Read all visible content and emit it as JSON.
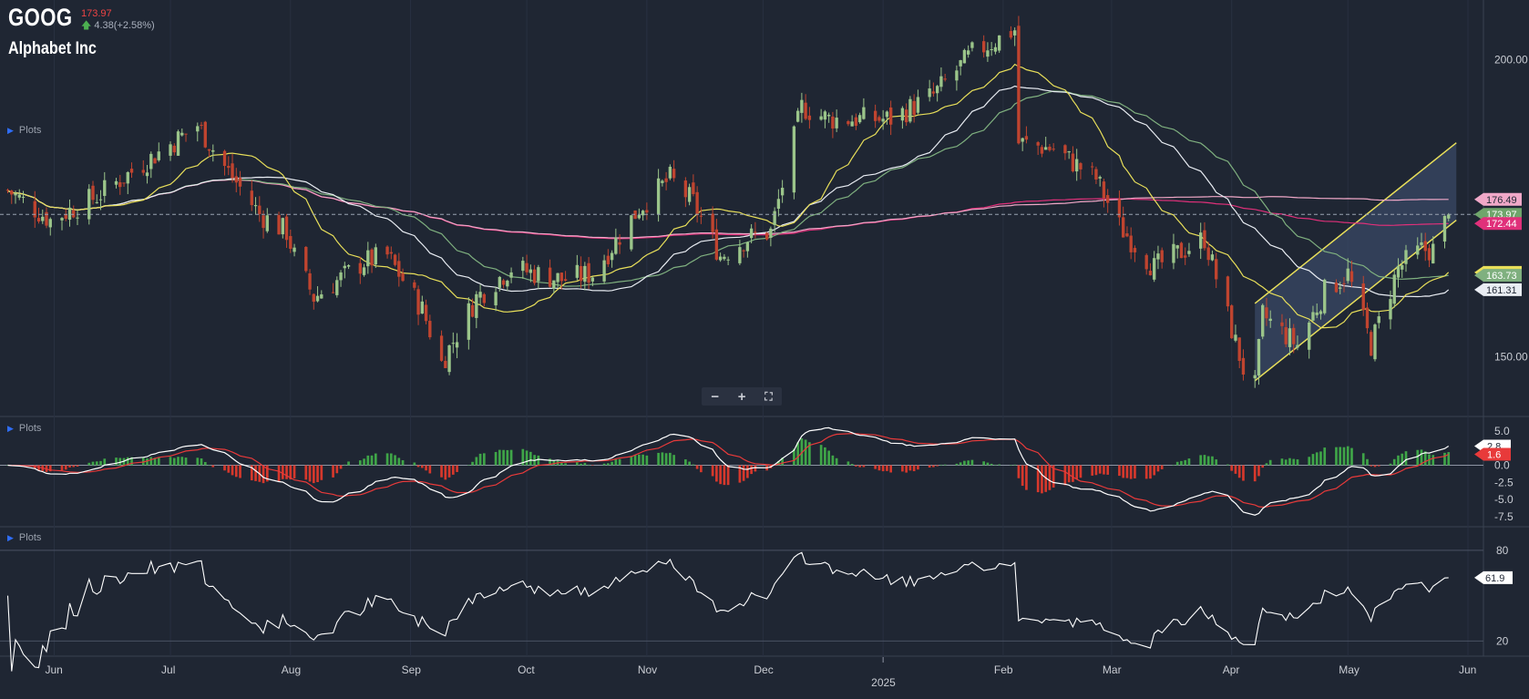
{
  "header": {
    "symbol": "GOOG",
    "price": "173.97",
    "change": "4.38(+2.58%)",
    "company": "Alphabet Inc"
  },
  "panels": {
    "plots_label": "Plots"
  },
  "zoom_controls": {
    "minus": "−",
    "plus": "+",
    "fullscreen": "⛶"
  },
  "colors": {
    "background": "#1f2633",
    "up_candle": "#9bc58a",
    "down_candle": "#c0442f",
    "ma_fast": "#e8df5a",
    "ma_white": "#e9edf3",
    "ma_green": "#7fb07f",
    "ma_pink": "#f0a8c8",
    "ma_magenta": "#e0307a",
    "channel_line": "#e8df5a",
    "channel_fill": "#3a4866",
    "macd_line": "#ffffff",
    "signal_line": "#e83a3a",
    "hist_pos": "#3fa548",
    "hist_neg": "#d6382c",
    "rsi_line": "#ffffff"
  },
  "chart_data": [
    {
      "type": "candlestick",
      "ylim": [
        140,
        210
      ],
      "y_ticks": [
        "200.00",
        "150.00"
      ],
      "x_labels": [
        {
          "label": "Jun",
          "date": "2024-06-01"
        },
        {
          "label": "Jul",
          "date": "2024-07-01"
        },
        {
          "label": "Aug",
          "date": "2024-08-01"
        },
        {
          "label": "Sep",
          "date": "2024-09-01"
        },
        {
          "label": "Oct",
          "date": "2024-10-01"
        },
        {
          "label": "Nov",
          "date": "2024-11-01"
        },
        {
          "label": "Dec",
          "date": "2024-12-01"
        },
        {
          "label": "2025",
          "date": "2025-01-01"
        },
        {
          "label": "Feb",
          "date": "2025-02-01"
        },
        {
          "label": "Mar",
          "date": "2025-03-01"
        },
        {
          "label": "Apr",
          "date": "2025-04-01"
        },
        {
          "label": "May",
          "date": "2025-05-01"
        },
        {
          "label": "Jun",
          "date": "2025-06-01"
        }
      ],
      "x_range": [
        "2024-05-18",
        "2025-06-05"
      ],
      "close_path": [
        [
          "2024-05-20",
          178
        ],
        [
          "2024-05-31",
          173
        ],
        [
          "2024-06-12",
          177
        ],
        [
          "2024-06-25",
          183
        ],
        [
          "2024-07-08",
          189
        ],
        [
          "2024-07-15",
          182
        ],
        [
          "2024-07-24",
          174
        ],
        [
          "2024-07-31",
          171
        ],
        [
          "2024-08-02",
          167
        ],
        [
          "2024-08-07",
          160
        ],
        [
          "2024-08-20",
          166
        ],
        [
          "2024-08-26",
          167
        ],
        [
          "2024-09-04",
          158
        ],
        [
          "2024-09-09",
          149
        ],
        [
          "2024-09-18",
          160
        ],
        [
          "2024-09-27",
          165
        ],
        [
          "2024-10-10",
          163
        ],
        [
          "2024-10-18",
          164
        ],
        [
          "2024-10-30",
          175
        ],
        [
          "2024-11-07",
          180
        ],
        [
          "2024-11-13",
          176
        ],
        [
          "2024-11-20",
          167
        ],
        [
          "2024-11-27",
          170
        ],
        [
          "2024-12-03",
          171
        ],
        [
          "2024-12-11",
          192
        ],
        [
          "2024-12-18",
          190
        ],
        [
          "2025-01-03",
          190
        ],
        [
          "2025-01-14",
          194
        ],
        [
          "2025-01-24",
          201
        ],
        [
          "2025-02-04",
          205
        ],
        [
          "2025-02-05",
          186
        ],
        [
          "2025-02-14",
          185
        ],
        [
          "2025-02-25",
          180
        ],
        [
          "2025-03-03",
          172
        ],
        [
          "2025-03-12",
          165
        ],
        [
          "2025-03-25",
          170
        ],
        [
          "2025-04-04",
          148
        ],
        [
          "2025-04-07",
          145
        ],
        [
          "2025-04-09",
          157
        ],
        [
          "2025-04-18",
          152
        ],
        [
          "2025-04-25",
          161
        ],
        [
          "2025-05-01",
          164
        ],
        [
          "2025-05-07",
          152
        ],
        [
          "2025-05-14",
          165
        ],
        [
          "2025-05-20",
          168
        ],
        [
          "2025-05-23",
          168
        ],
        [
          "2025-05-27",
          173.97
        ]
      ],
      "series": [
        {
          "label": "176.49",
          "last": 176.49,
          "color": "#f0a8c8"
        },
        {
          "label": "173.97",
          "last": 173.97,
          "color": "#6fa56b"
        },
        {
          "label": "172.44",
          "last": 172.44,
          "color": "#e0307a"
        },
        {
          "label": "164.23",
          "last": 164.23,
          "color": "#e8df5a"
        },
        {
          "label": "163.73",
          "last": 163.73,
          "color": "#7fb07f"
        },
        {
          "label": "161.31",
          "last": 161.31,
          "color": "#e9edf3"
        }
      ],
      "channel": {
        "start": [
          "2025-04-07",
          146,
          159
        ],
        "end": [
          "2025-05-29",
          173,
          186
        ]
      },
      "last_price": 173.97
    },
    {
      "type": "line",
      "name": "MACD",
      "ylim": [
        -9,
        7
      ],
      "y_ticks": [
        "5.0",
        "2.5",
        "0.0",
        "-2.5",
        "-5.0",
        "-7.5"
      ],
      "macd_last": 2.8,
      "signal_last": 1.6,
      "labels": [
        "2.8",
        "1.6"
      ]
    },
    {
      "type": "line",
      "name": "RSI",
      "ylim": [
        10,
        95
      ],
      "y_ticks": [
        "80",
        "20"
      ],
      "last": 61.9,
      "label": "61.9"
    }
  ]
}
